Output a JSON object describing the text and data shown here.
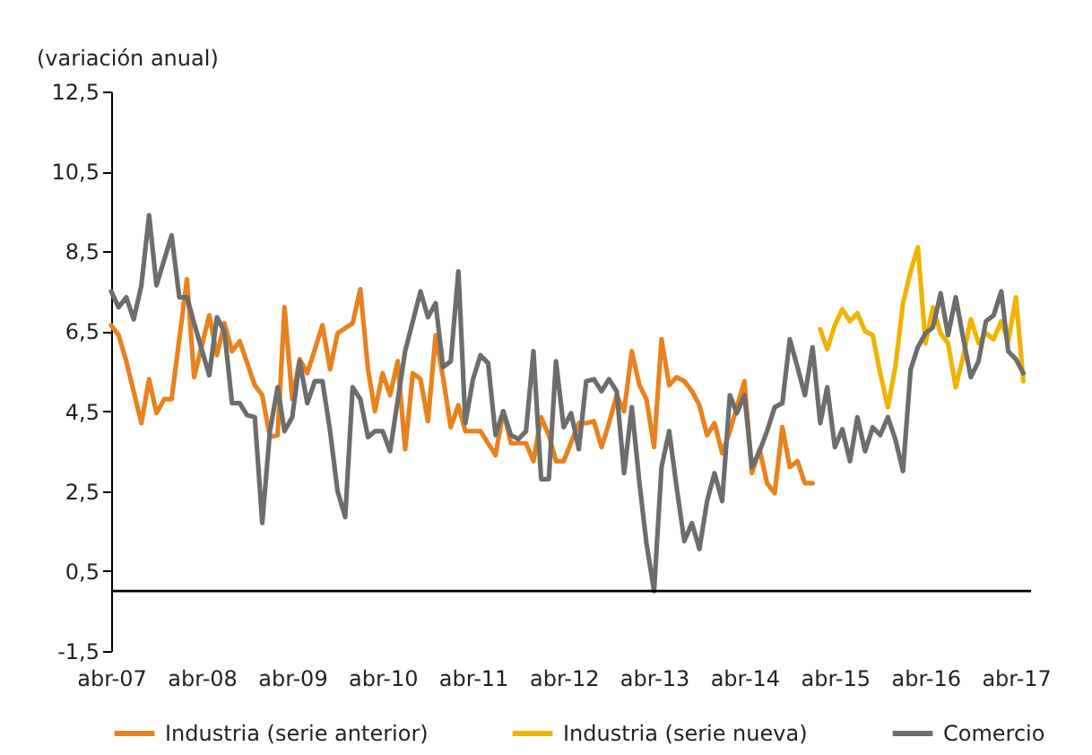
{
  "chart_data": {
    "type": "line",
    "ylabel": "(variación anual)",
    "ylim": [
      -1.5,
      12.5
    ],
    "yticks": [
      {
        "value": -1.5,
        "label": "-1,5"
      },
      {
        "value": 0.5,
        "label": "0,5"
      },
      {
        "value": 2.5,
        "label": "2,5"
      },
      {
        "value": 4.5,
        "label": "4,5"
      },
      {
        "value": 6.5,
        "label": "6,5"
      },
      {
        "value": 8.5,
        "label": "8,5"
      },
      {
        "value": 10.5,
        "label": "10,5"
      },
      {
        "value": 12.5,
        "label": "12,5"
      }
    ],
    "xlim": [
      "2007-04",
      "2017-06"
    ],
    "xticks": [
      {
        "value": "2007-04",
        "label": "abr-07"
      },
      {
        "value": "2008-04",
        "label": "abr-08"
      },
      {
        "value": "2009-04",
        "label": "abr-09"
      },
      {
        "value": "2010-04",
        "label": "abr-10"
      },
      {
        "value": "2011-04",
        "label": "abr-11"
      },
      {
        "value": "2012-04",
        "label": "abr-12"
      },
      {
        "value": "2013-04",
        "label": "abr-13"
      },
      {
        "value": "2014-04",
        "label": "abr-14"
      },
      {
        "value": "2015-04",
        "label": "abr-15"
      },
      {
        "value": "2016-04",
        "label": "abr-16"
      },
      {
        "value": "2017-04",
        "label": "abr-17"
      }
    ],
    "ref_lines": [
      {
        "axis": "y",
        "value": 0,
        "label": null,
        "color": "#000000"
      }
    ],
    "grid": false,
    "legend": "bottom",
    "series": [
      {
        "name": "Industria (serie anterior)",
        "color": "#e8821e",
        "x": [
          "2007-04",
          "2007-05",
          "2007-06",
          "2007-08",
          "2007-09",
          "2007-10",
          "2007-11",
          "2007-12",
          "2008-02",
          "2008-03",
          "2008-05",
          "2008-06",
          "2008-07",
          "2008-08",
          "2008-09",
          "2008-11",
          "2008-12",
          "2009-01",
          "2009-02",
          "2009-03",
          "2009-04",
          "2009-05",
          "2009-06",
          "2009-08",
          "2009-09",
          "2009-10",
          "2009-12",
          "2010-01",
          "2010-02",
          "2010-03",
          "2010-04",
          "2010-05",
          "2010-06",
          "2010-07",
          "2010-08",
          "2010-09",
          "2010-10",
          "2010-11",
          "2010-12",
          "2011-01",
          "2011-02",
          "2011-03",
          "2011-05",
          "2011-07",
          "2011-08",
          "2011-09",
          "2011-10",
          "2011-11",
          "2011-12",
          "2012-01",
          "2012-02",
          "2012-03",
          "2012-04",
          "2012-06",
          "2012-07",
          "2012-08",
          "2012-09",
          "2012-10",
          "2012-11",
          "2012-12",
          "2013-01",
          "2013-02",
          "2013-03",
          "2013-04",
          "2013-05",
          "2013-06",
          "2013-07",
          "2013-08",
          "2013-09",
          "2013-10",
          "2013-11",
          "2013-12",
          "2014-01",
          "2014-02",
          "2014-03",
          "2014-04",
          "2014-05",
          "2014-06",
          "2014-07",
          "2014-08",
          "2014-09",
          "2014-10",
          "2014-11",
          "2014-12",
          "2015-01"
        ],
        "values": [
          6.65,
          6.4,
          5.75,
          4.2,
          5.3,
          4.45,
          4.8,
          4.8,
          7.8,
          5.35,
          6.9,
          5.9,
          6.7,
          6.0,
          6.25,
          5.15,
          4.9,
          3.85,
          3.9,
          7.1,
          4.8,
          5.8,
          5.45,
          6.65,
          5.55,
          6.45,
          6.7,
          7.55,
          5.55,
          4.5,
          5.45,
          4.9,
          5.75,
          3.55,
          5.45,
          5.3,
          4.25,
          6.4,
          5.35,
          4.1,
          4.65,
          4.0,
          4.0,
          3.4,
          4.5,
          3.7,
          3.7,
          3.7,
          3.25,
          4.35,
          3.9,
          3.25,
          3.25,
          4.2,
          4.2,
          4.25,
          3.6,
          4.2,
          4.9,
          4.5,
          6.0,
          5.15,
          4.8,
          3.6,
          6.3,
          5.15,
          5.35,
          5.25,
          5.0,
          4.65,
          3.9,
          4.2,
          3.45,
          4.0,
          4.6,
          5.25,
          2.95,
          3.55,
          2.7,
          2.45,
          4.1,
          3.1,
          3.25,
          2.7,
          2.7
        ]
      },
      {
        "name": "Industria (serie nueva)",
        "color": "#f0b400",
        "x": [
          "2015-02",
          "2015-03",
          "2015-04",
          "2015-05",
          "2015-06",
          "2015-07",
          "2015-08",
          "2015-09",
          "2015-10",
          "2015-11",
          "2015-12",
          "2016-01",
          "2016-02",
          "2016-03",
          "2016-04",
          "2016-05",
          "2016-06",
          "2016-07",
          "2016-08",
          "2016-09",
          "2016-10",
          "2016-11",
          "2016-12",
          "2017-01",
          "2017-02",
          "2017-03",
          "2017-04",
          "2017-05"
        ],
        "values": [
          6.55,
          6.05,
          6.65,
          7.05,
          6.75,
          6.95,
          6.5,
          6.4,
          5.45,
          4.6,
          5.6,
          7.2,
          8.0,
          8.6,
          6.2,
          7.1,
          6.45,
          6.2,
          5.1,
          5.9,
          6.8,
          6.2,
          6.45,
          6.3,
          6.75,
          6.25,
          7.35,
          5.25
        ]
      },
      {
        "name": "Comercio",
        "color": "#6d6d6d",
        "x": [
          "2007-04",
          "2007-05",
          "2007-06",
          "2007-07",
          "2007-08",
          "2007-09",
          "2007-10",
          "2007-12",
          "2008-01",
          "2008-02",
          "2008-03",
          "2008-05",
          "2008-06",
          "2008-07",
          "2008-08",
          "2008-09",
          "2008-10",
          "2008-11",
          "2008-12",
          "2009-01",
          "2009-02",
          "2009-03",
          "2009-04",
          "2009-05",
          "2009-06",
          "2009-07",
          "2009-08",
          "2009-09",
          "2009-10",
          "2009-11",
          "2009-12",
          "2010-01",
          "2010-02",
          "2010-03",
          "2010-04",
          "2010-05",
          "2010-07",
          "2010-09",
          "2010-10",
          "2010-11",
          "2010-12",
          "2011-01",
          "2011-02",
          "2011-03",
          "2011-04",
          "2011-05",
          "2011-06",
          "2011-07",
          "2011-08",
          "2011-09",
          "2011-10",
          "2011-11",
          "2011-12",
          "2012-01",
          "2012-02",
          "2012-03",
          "2012-04",
          "2012-05",
          "2012-06",
          "2012-07",
          "2012-08",
          "2012-09",
          "2012-10",
          "2012-11",
          "2012-12",
          "2013-01",
          "2013-02",
          "2013-03",
          "2013-04",
          "2013-05",
          "2013-06",
          "2013-07",
          "2013-08",
          "2013-09",
          "2013-10",
          "2013-11",
          "2013-12",
          "2014-01",
          "2014-02",
          "2014-03",
          "2014-04",
          "2014-05",
          "2014-06",
          "2014-07",
          "2014-08",
          "2014-09",
          "2014-10",
          "2014-11",
          "2014-12",
          "2015-01",
          "2015-02",
          "2015-03",
          "2015-04",
          "2015-05",
          "2015-06",
          "2015-07",
          "2015-08",
          "2015-09",
          "2015-10",
          "2015-11",
          "2015-12",
          "2016-01",
          "2016-02",
          "2016-03",
          "2016-04",
          "2016-05",
          "2016-06",
          "2016-07",
          "2016-08",
          "2016-09",
          "2016-10",
          "2016-11",
          "2016-12",
          "2017-01",
          "2017-02",
          "2017-03",
          "2017-04",
          "2017-05"
        ],
        "values": [
          7.5,
          7.1,
          7.35,
          6.8,
          7.65,
          9.4,
          7.65,
          8.9,
          7.35,
          7.35,
          6.7,
          5.4,
          6.85,
          6.5,
          4.7,
          4.7,
          4.4,
          4.35,
          1.7,
          4.0,
          5.1,
          4.0,
          4.35,
          5.75,
          4.7,
          5.25,
          5.25,
          4.0,
          2.5,
          1.85,
          5.1,
          4.8,
          3.85,
          4.0,
          4.0,
          3.5,
          6.0,
          7.5,
          6.85,
          7.2,
          5.6,
          5.75,
          8.0,
          4.2,
          5.3,
          5.9,
          5.7,
          3.9,
          4.5,
          3.9,
          3.8,
          4.0,
          6.0,
          2.8,
          2.8,
          5.75,
          4.1,
          4.45,
          3.55,
          5.25,
          5.3,
          5.0,
          5.3,
          5.0,
          2.95,
          4.6,
          2.7,
          1.2,
          0.0,
          3.1,
          4.0,
          2.6,
          1.25,
          1.7,
          1.05,
          2.25,
          2.95,
          2.25,
          4.9,
          4.45,
          4.9,
          3.1,
          3.5,
          4.0,
          4.6,
          4.7,
          6.3,
          5.6,
          4.9,
          6.1,
          4.2,
          5.1,
          3.6,
          4.05,
          3.25,
          4.35,
          3.5,
          4.1,
          3.9,
          4.35,
          3.8,
          3.0,
          5.55,
          6.1,
          6.45,
          6.6,
          7.45,
          6.4,
          7.35,
          6.3,
          5.35,
          5.75,
          6.75,
          6.9,
          7.5,
          6.0,
          5.8,
          5.45
        ]
      }
    ]
  }
}
